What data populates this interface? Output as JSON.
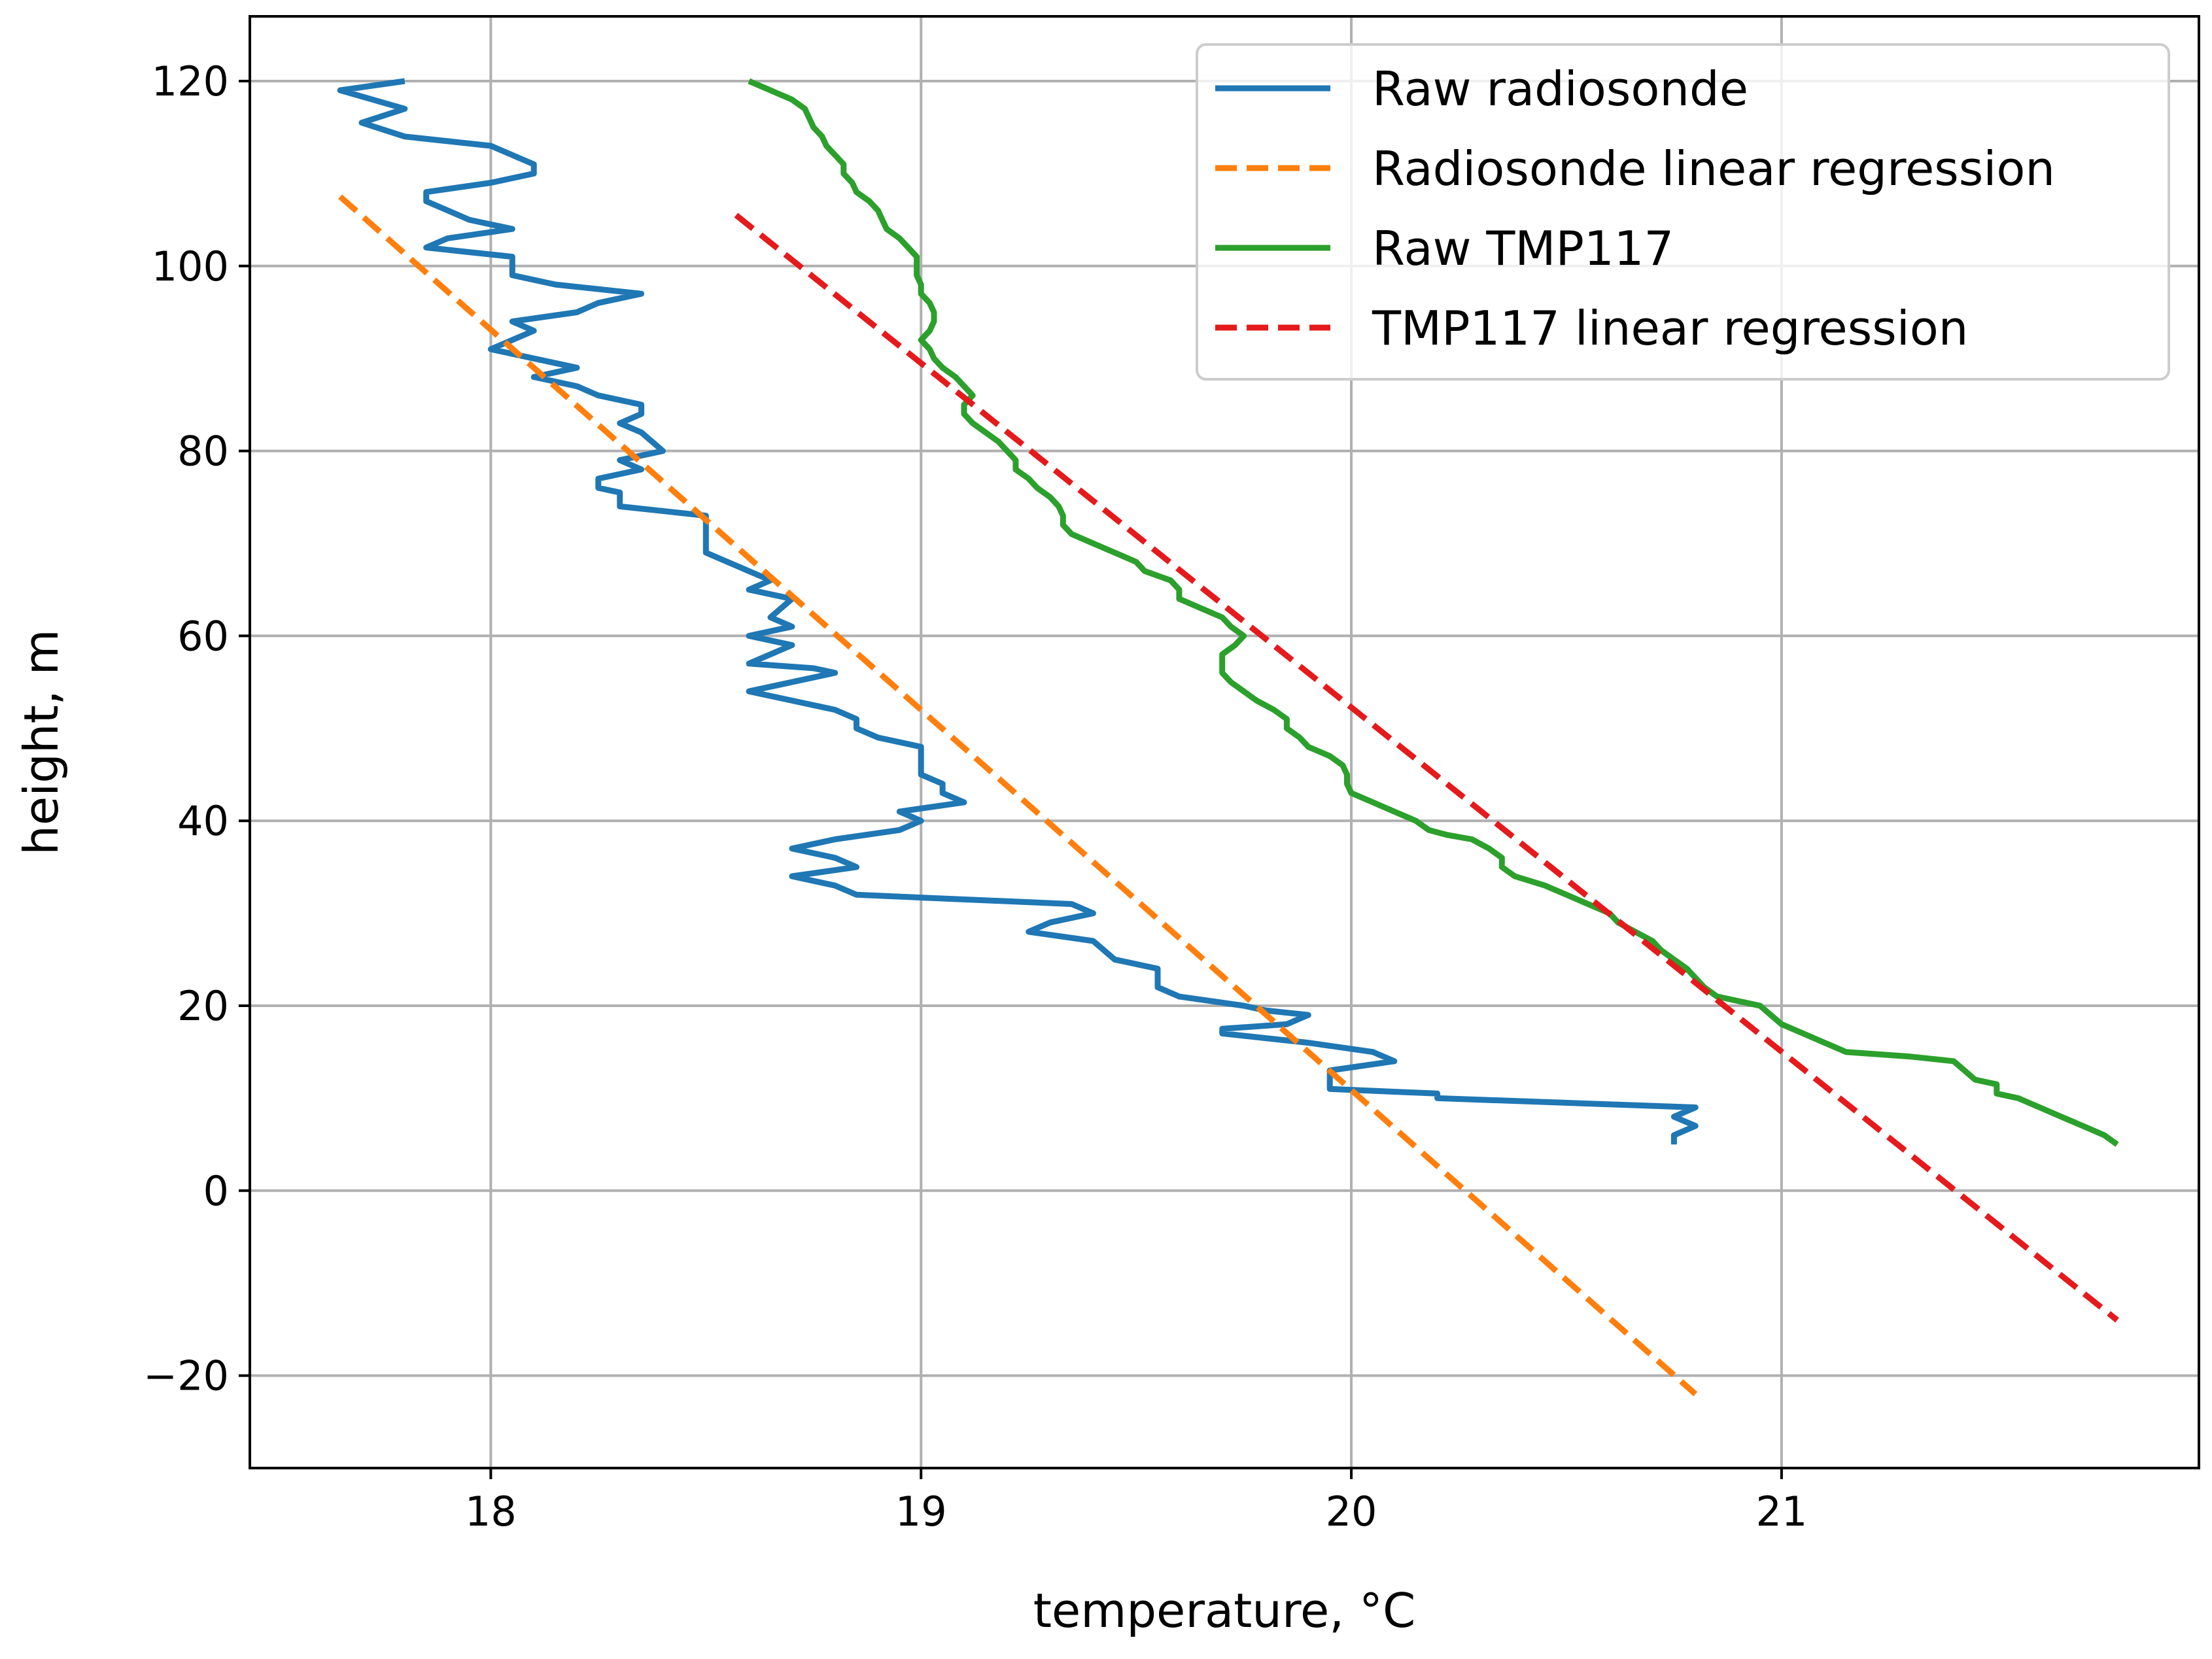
{
  "chart_data": {
    "type": "line",
    "title": "",
    "xlabel": "temperature, °C",
    "ylabel": "height, m",
    "xlim": [
      17.44,
      21.97
    ],
    "ylim": [
      -30,
      127
    ],
    "xticks": [
      18,
      19,
      20,
      21
    ],
    "xtick_labels": [
      "18",
      "19",
      "20",
      "21"
    ],
    "yticks": [
      -20,
      0,
      20,
      40,
      60,
      80,
      100,
      120
    ],
    "ytick_labels": [
      "−20",
      "0",
      "20",
      "40",
      "60",
      "80",
      "100",
      "120"
    ],
    "grid": true,
    "legend_position": "top-right",
    "series": [
      {
        "name": "Raw radiosonde",
        "color": "#1f77b4",
        "style": "solid",
        "points": [
          [
            17.8,
            120
          ],
          [
            17.65,
            119
          ],
          [
            17.8,
            117
          ],
          [
            17.7,
            115.5
          ],
          [
            17.8,
            114
          ],
          [
            18.0,
            113
          ],
          [
            18.1,
            111
          ],
          [
            18.1,
            110
          ],
          [
            18.0,
            109
          ],
          [
            17.85,
            108
          ],
          [
            17.85,
            107
          ],
          [
            17.9,
            106
          ],
          [
            17.95,
            105
          ],
          [
            18.05,
            104
          ],
          [
            17.9,
            103
          ],
          [
            17.85,
            102
          ],
          [
            17.95,
            101.5
          ],
          [
            18.05,
            101
          ],
          [
            18.05,
            99
          ],
          [
            18.15,
            98
          ],
          [
            18.35,
            97
          ],
          [
            18.25,
            96
          ],
          [
            18.2,
            95
          ],
          [
            18.05,
            94
          ],
          [
            18.1,
            93
          ],
          [
            18.05,
            92
          ],
          [
            18.0,
            91
          ],
          [
            18.1,
            90
          ],
          [
            18.2,
            89
          ],
          [
            18.1,
            88
          ],
          [
            18.2,
            87
          ],
          [
            18.25,
            86
          ],
          [
            18.35,
            85
          ],
          [
            18.35,
            84
          ],
          [
            18.3,
            83
          ],
          [
            18.35,
            82
          ],
          [
            18.4,
            80
          ],
          [
            18.3,
            79
          ],
          [
            18.35,
            78
          ],
          [
            18.25,
            77
          ],
          [
            18.25,
            76
          ],
          [
            18.3,
            75.5
          ],
          [
            18.3,
            74
          ],
          [
            18.5,
            73
          ],
          [
            18.5,
            69
          ],
          [
            18.55,
            68
          ],
          [
            18.65,
            66
          ],
          [
            18.6,
            65
          ],
          [
            18.7,
            64
          ],
          [
            18.65,
            62
          ],
          [
            18.7,
            61
          ],
          [
            18.6,
            60
          ],
          [
            18.7,
            59
          ],
          [
            18.6,
            57
          ],
          [
            18.75,
            56.5
          ],
          [
            18.8,
            56
          ],
          [
            18.6,
            54
          ],
          [
            18.7,
            53
          ],
          [
            18.8,
            52
          ],
          [
            18.85,
            51
          ],
          [
            18.85,
            50
          ],
          [
            18.9,
            49
          ],
          [
            19.0,
            48
          ],
          [
            19.0,
            46
          ],
          [
            19.0,
            45
          ],
          [
            19.05,
            44
          ],
          [
            19.05,
            43
          ],
          [
            19.1,
            42
          ],
          [
            18.95,
            41
          ],
          [
            19.0,
            40
          ],
          [
            18.95,
            39
          ],
          [
            18.8,
            38
          ],
          [
            18.7,
            37
          ],
          [
            18.8,
            36
          ],
          [
            18.85,
            35
          ],
          [
            18.7,
            34
          ],
          [
            18.8,
            33
          ],
          [
            18.85,
            32
          ],
          [
            19.35,
            31
          ],
          [
            19.4,
            30
          ],
          [
            19.3,
            29
          ],
          [
            19.25,
            28
          ],
          [
            19.4,
            27
          ],
          [
            19.45,
            25
          ],
          [
            19.55,
            24
          ],
          [
            19.55,
            22
          ],
          [
            19.6,
            21
          ],
          [
            19.75,
            20
          ],
          [
            19.8,
            19.5
          ],
          [
            19.9,
            19
          ],
          [
            19.85,
            18
          ],
          [
            19.7,
            17.5
          ],
          [
            19.7,
            17
          ],
          [
            19.9,
            16
          ],
          [
            20.05,
            15
          ],
          [
            20.1,
            14
          ],
          [
            19.95,
            13
          ],
          [
            19.95,
            12
          ],
          [
            19.95,
            11
          ],
          [
            20.2,
            10.5
          ],
          [
            20.2,
            10
          ],
          [
            20.8,
            9
          ],
          [
            20.75,
            8
          ],
          [
            20.8,
            7
          ],
          [
            20.75,
            6
          ],
          [
            20.75,
            5
          ]
        ]
      },
      {
        "name": "Radiosonde linear regression",
        "color": "#ff7f0e",
        "style": "dashed",
        "points": [
          [
            17.65,
            107.5
          ],
          [
            20.8,
            -22
          ]
        ]
      },
      {
        "name": "Raw TMP117",
        "color": "#2ca02c",
        "style": "solid",
        "points": [
          [
            18.6,
            120
          ],
          [
            18.65,
            119
          ],
          [
            18.7,
            118
          ],
          [
            18.73,
            117
          ],
          [
            18.74,
            116
          ],
          [
            18.75,
            115
          ],
          [
            18.77,
            114
          ],
          [
            18.78,
            113
          ],
          [
            18.8,
            112
          ],
          [
            18.82,
            111
          ],
          [
            18.82,
            110
          ],
          [
            18.84,
            109
          ],
          [
            18.85,
            108
          ],
          [
            18.88,
            107
          ],
          [
            18.9,
            106
          ],
          [
            18.91,
            105
          ],
          [
            18.92,
            104
          ],
          [
            18.95,
            103
          ],
          [
            18.97,
            102
          ],
          [
            18.99,
            101
          ],
          [
            18.99,
            100
          ],
          [
            18.99,
            99
          ],
          [
            19.0,
            98
          ],
          [
            19.0,
            97
          ],
          [
            19.02,
            96
          ],
          [
            19.03,
            95
          ],
          [
            19.03,
            94
          ],
          [
            19.02,
            93
          ],
          [
            19.0,
            92
          ],
          [
            19.02,
            91
          ],
          [
            19.03,
            90
          ],
          [
            19.05,
            89
          ],
          [
            19.08,
            88
          ],
          [
            19.1,
            87
          ],
          [
            19.12,
            86
          ],
          [
            19.1,
            85
          ],
          [
            19.1,
            84
          ],
          [
            19.12,
            83
          ],
          [
            19.15,
            82
          ],
          [
            19.18,
            81
          ],
          [
            19.2,
            80
          ],
          [
            19.22,
            79
          ],
          [
            19.22,
            78
          ],
          [
            19.25,
            77
          ],
          [
            19.27,
            76
          ],
          [
            19.3,
            75
          ],
          [
            19.32,
            74
          ],
          [
            19.33,
            73
          ],
          [
            19.33,
            72
          ],
          [
            19.35,
            71
          ],
          [
            19.4,
            70
          ],
          [
            19.45,
            69
          ],
          [
            19.5,
            68
          ],
          [
            19.52,
            67
          ],
          [
            19.58,
            66
          ],
          [
            19.6,
            65
          ],
          [
            19.6,
            64
          ],
          [
            19.65,
            63
          ],
          [
            19.7,
            62
          ],
          [
            19.72,
            61
          ],
          [
            19.75,
            60
          ],
          [
            19.73,
            59
          ],
          [
            19.7,
            58
          ],
          [
            19.7,
            57
          ],
          [
            19.7,
            56
          ],
          [
            19.72,
            55
          ],
          [
            19.75,
            54
          ],
          [
            19.78,
            53
          ],
          [
            19.82,
            52
          ],
          [
            19.85,
            51
          ],
          [
            19.85,
            50
          ],
          [
            19.88,
            49
          ],
          [
            19.9,
            48
          ],
          [
            19.95,
            47
          ],
          [
            19.98,
            46
          ],
          [
            19.99,
            45
          ],
          [
            19.99,
            44
          ],
          [
            20.0,
            43
          ],
          [
            20.05,
            42
          ],
          [
            20.1,
            41
          ],
          [
            20.15,
            40
          ],
          [
            20.18,
            39
          ],
          [
            20.22,
            38.5
          ],
          [
            20.28,
            38
          ],
          [
            20.32,
            37
          ],
          [
            20.35,
            36
          ],
          [
            20.35,
            35
          ],
          [
            20.38,
            34
          ],
          [
            20.45,
            33
          ],
          [
            20.5,
            32
          ],
          [
            20.55,
            31
          ],
          [
            20.6,
            30
          ],
          [
            20.62,
            29
          ],
          [
            20.66,
            28
          ],
          [
            20.7,
            27
          ],
          [
            20.72,
            26
          ],
          [
            20.75,
            25
          ],
          [
            20.78,
            24
          ],
          [
            20.8,
            23
          ],
          [
            20.82,
            22
          ],
          [
            20.85,
            21
          ],
          [
            20.95,
            20
          ],
          [
            21.0,
            18
          ],
          [
            21.05,
            17
          ],
          [
            21.1,
            16
          ],
          [
            21.15,
            15
          ],
          [
            21.3,
            14.5
          ],
          [
            21.4,
            14
          ],
          [
            21.45,
            12
          ],
          [
            21.5,
            11.5
          ],
          [
            21.5,
            10.5
          ],
          [
            21.55,
            10
          ],
          [
            21.6,
            9
          ],
          [
            21.65,
            8
          ],
          [
            21.7,
            7
          ],
          [
            21.75,
            6
          ],
          [
            21.78,
            5
          ]
        ]
      },
      {
        "name": "TMP117 linear regression",
        "color": "#e41a1c",
        "style": "dashed",
        "points": [
          [
            18.57,
            105.5
          ],
          [
            21.78,
            -14
          ]
        ]
      }
    ]
  }
}
